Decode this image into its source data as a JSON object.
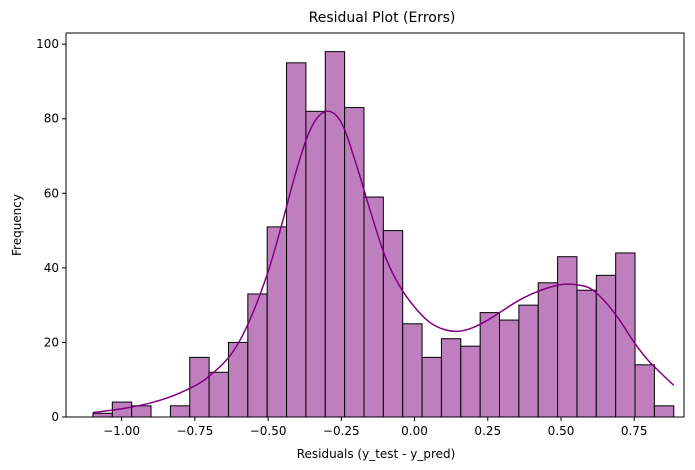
{
  "chart_data": {
    "type": "bar",
    "title": "Residual Plot (Errors)",
    "xlabel": "Residuals (y_test - y_pred)",
    "ylabel": "Frequency",
    "xlim": [
      -1.19,
      0.92
    ],
    "ylim": [
      0,
      103
    ],
    "bin_edges": [
      -1.098,
      -1.0319,
      -0.9658,
      -0.8997,
      -0.8336,
      -0.7675,
      -0.7014,
      -0.6353,
      -0.5692,
      -0.5031,
      -0.437,
      -0.3709,
      -0.3048,
      -0.2387,
      -0.1726,
      -0.1065,
      -0.0404,
      0.0257,
      0.0918,
      0.1579,
      0.224,
      0.2901,
      0.3562,
      0.4223,
      0.4884,
      0.5545,
      0.6206,
      0.6867,
      0.7528,
      0.8189,
      0.885
    ],
    "counts": [
      1,
      4,
      3,
      0,
      3,
      16,
      12,
      20,
      33,
      51,
      95,
      82,
      98,
      83,
      59,
      50,
      25,
      16,
      21,
      19,
      28,
      26,
      30,
      36,
      43,
      34,
      38,
      44,
      14,
      3
    ],
    "kde": {
      "x": [
        -1.098,
        -1.0,
        -0.9,
        -0.8,
        -0.7,
        -0.6,
        -0.5,
        -0.4,
        -0.35,
        -0.3,
        -0.25,
        -0.2,
        -0.15,
        -0.1,
        -0.05,
        0.0,
        0.05,
        0.1,
        0.15,
        0.2,
        0.25,
        0.3,
        0.35,
        0.4,
        0.45,
        0.5,
        0.55,
        0.6,
        0.65,
        0.7,
        0.75,
        0.8,
        0.885
      ],
      "y": [
        1.2,
        2.2,
        3.8,
        6.5,
        11.0,
        20.0,
        39.0,
        67.0,
        78.0,
        82.0,
        79.0,
        68.0,
        55.0,
        43.0,
        35.0,
        29.5,
        25.5,
        23.5,
        23.0,
        24.0,
        26.0,
        28.5,
        31.0,
        33.0,
        34.5,
        35.5,
        35.5,
        34.5,
        31.0,
        26.0,
        20.0,
        15.0,
        8.5
      ]
    },
    "xticks": [
      -1.0,
      -0.75,
      -0.5,
      -0.25,
      0.0,
      0.25,
      0.5,
      0.75
    ],
    "xtick_labels": [
      "−1.00",
      "−0.75",
      "−0.50",
      "−0.25",
      "0.00",
      "0.25",
      "0.50",
      "0.75"
    ],
    "yticks": [
      0,
      20,
      40,
      60,
      80,
      100
    ],
    "ytick_labels": [
      "0",
      "20",
      "40",
      "60",
      "80",
      "100"
    ],
    "grid": false,
    "colors": {
      "bar_fill": "#bf7fbf",
      "bar_edge": "#000000",
      "kde_line": "#800080"
    }
  }
}
